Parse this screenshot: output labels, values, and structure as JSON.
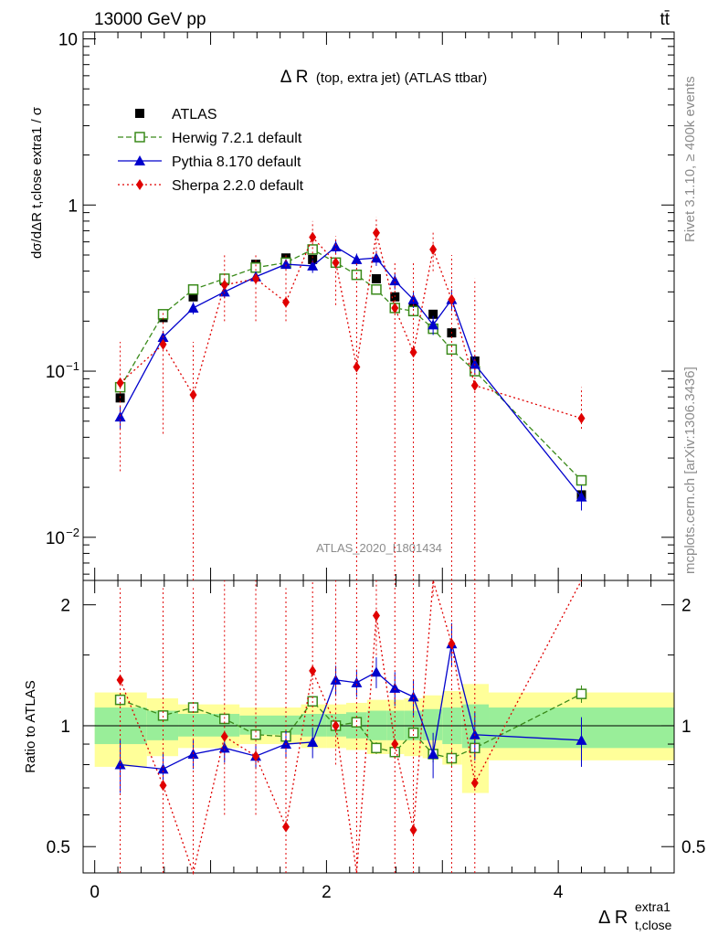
{
  "header": {
    "energy": "13000 GeV pp",
    "process": "tt̄",
    "title_main": "Δ R",
    "title_detail": "(top, extra jet) (ATLAS ttbar)",
    "side_rivet": "Rivet 3.1.10, ≥ 400k events",
    "side_mcplots": "mcplots.cern.ch [arXiv:1306.3436]",
    "analysis_id": "ATLAS_2020_I1801434"
  },
  "axes": {
    "ylabel_top": "dσ/dΔR t,close extra1 / σ",
    "ylabel_ratio": "Ratio to ATLAS",
    "xlabel": "Δ R",
    "xlabel_sup": "extra1",
    "xlabel_sub": "t,close",
    "xlim": [
      -0.1,
      5.0
    ],
    "ylim_top": [
      0.0055,
      11
    ],
    "ylim_ratio": [
      0.43,
      2.3
    ],
    "yscale": "log",
    "top_ticks": [
      "10",
      "1",
      "10",
      "10"
    ],
    "top_tick_exps": [
      "",
      "",
      "−1",
      "−2"
    ],
    "ratio_ticks": [
      "2",
      "1",
      "0.5"
    ],
    "x_ticks": [
      "0",
      "2",
      "4"
    ]
  },
  "legend": [
    {
      "label": "ATLAS",
      "color": "#000000"
    },
    {
      "label": "Herwig 7.2.1 default",
      "color": "#3a8a1a"
    },
    {
      "label": "Pythia 8.170 default",
      "color": "#0000cc"
    },
    {
      "label": "Sherpa 2.2.0 default",
      "color": "#e00000"
    }
  ],
  "chart_data": {
    "type": "scatter",
    "x": [
      0.22,
      0.59,
      0.85,
      1.12,
      1.39,
      1.65,
      1.88,
      2.08,
      2.26,
      2.43,
      2.59,
      2.75,
      2.92,
      3.08,
      3.28,
      4.2
    ],
    "series": [
      {
        "name": "ATLAS",
        "marker": "square",
        "color": "#000000",
        "values": [
          0.069,
          0.21,
          0.28,
          0.35,
          0.44,
          0.48,
          0.47,
          0.45,
          0.38,
          0.36,
          0.28,
          0.24,
          0.22,
          0.17,
          0.115,
          0.018
        ]
      },
      {
        "name": "Herwig 7.2.1 default",
        "marker": "open-square",
        "color": "#3a8a1a",
        "linestyle": "dashed",
        "values": [
          0.08,
          0.22,
          0.31,
          0.36,
          0.42,
          0.45,
          0.54,
          0.45,
          0.38,
          0.31,
          0.24,
          0.23,
          0.18,
          0.135,
          0.1,
          0.022
        ],
        "errors": [
          0.003,
          0.005,
          0.006,
          0.008,
          0.009,
          0.01,
          0.012,
          0.012,
          0.01,
          0.01,
          0.009,
          0.009,
          0.008,
          0.007,
          0.006,
          0.0015
        ],
        "ratio": [
          1.16,
          1.06,
          1.11,
          1.04,
          0.95,
          0.94,
          1.15,
          1.0,
          1.02,
          0.88,
          0.86,
          0.96,
          0.85,
          0.83,
          0.88,
          1.2
        ],
        "ratio_err": [
          0.04,
          0.03,
          0.03,
          0.03,
          0.03,
          0.03,
          0.03,
          0.03,
          0.03,
          0.03,
          0.03,
          0.04,
          0.04,
          0.04,
          0.05,
          0.06
        ]
      },
      {
        "name": "Pythia 8.170 default",
        "marker": "triangle",
        "color": "#0000cc",
        "linestyle": "solid",
        "values": [
          0.053,
          0.16,
          0.24,
          0.3,
          0.37,
          0.44,
          0.43,
          0.56,
          0.47,
          0.48,
          0.35,
          0.27,
          0.19,
          0.27,
          0.11,
          0.0175
        ],
        "errors": [
          0.008,
          0.015,
          0.02,
          0.025,
          0.025,
          0.03,
          0.04,
          0.05,
          0.04,
          0.05,
          0.04,
          0.03,
          0.025,
          0.04,
          0.015,
          0.003
        ],
        "ratio": [
          0.8,
          0.78,
          0.85,
          0.88,
          0.84,
          0.9,
          0.91,
          1.3,
          1.28,
          1.36,
          1.24,
          1.18,
          0.85,
          1.6,
          0.95,
          0.92
        ],
        "ratio_err": [
          0.12,
          0.08,
          0.07,
          0.07,
          0.06,
          0.07,
          0.08,
          0.11,
          0.1,
          0.12,
          0.12,
          0.12,
          0.11,
          0.2,
          0.13,
          0.13
        ]
      },
      {
        "name": "Sherpa 2.2.0 default",
        "marker": "diamond",
        "color": "#e00000",
        "linestyle": "dotted",
        "values": [
          0.085,
          0.145,
          0.072,
          0.33,
          0.36,
          0.26,
          0.64,
          0.45,
          0.106,
          0.68,
          0.24,
          0.13,
          0.54,
          0.27,
          0.082,
          0.052
        ],
        "ratio": [
          1.3,
          0.71,
          0.35,
          0.94,
          0.84,
          0.56,
          1.37,
          1.0,
          0.31,
          1.88,
          0.9,
          0.55,
          2.4,
          1.6,
          0.72,
          2.9
        ],
        "err_lo_abs": [
          0.025,
          0.042,
          0.002,
          0.2,
          0.2,
          0.2,
          0.45,
          0.25,
          0.002,
          0.48,
          0.002,
          0.002,
          0.4,
          0.002,
          0.002,
          0.045
        ],
        "err_hi_abs": [
          0.15,
          0.23,
          0.15,
          0.5,
          0.5,
          0.5,
          0.8,
          0.65,
          0.45,
          0.85,
          0.45,
          0.45,
          0.7,
          0.5,
          0.36,
          0.08
        ],
        "ratio_lo_abs": [
          0.43,
          0.43,
          0.43,
          0.6,
          0.6,
          0.43,
          1.0,
          0.8,
          0.43,
          1.5,
          0.43,
          0.43,
          2.1,
          0.43,
          0.43,
          2.3
        ],
        "ratio_hi_abs": [
          2.2,
          2.2,
          2.2,
          2.3,
          2.3,
          2.2,
          2.3,
          2.3,
          2.3,
          2.3,
          2.3,
          2.3,
          2.3,
          2.3,
          2.3,
          2.3
        ]
      }
    ],
    "bands": {
      "edges": [
        0.0,
        0.45,
        0.72,
        1.25,
        1.52,
        1.78,
        2.0,
        2.17,
        2.35,
        2.52,
        2.67,
        2.83,
        3.0,
        3.17,
        3.4,
        5.0
      ],
      "green_lo": [
        0.9,
        0.92,
        0.94,
        0.95,
        0.95,
        0.94,
        0.94,
        0.93,
        0.92,
        0.92,
        0.92,
        0.92,
        0.9,
        0.88,
        0.88
      ],
      "green_hi": [
        1.11,
        1.09,
        1.07,
        1.06,
        1.06,
        1.07,
        1.07,
        1.08,
        1.09,
        1.09,
        1.09,
        1.1,
        1.11,
        1.13,
        1.11
      ],
      "yellow_lo": [
        0.79,
        0.84,
        0.88,
        0.9,
        0.9,
        0.88,
        0.88,
        0.87,
        0.85,
        0.85,
        0.84,
        0.83,
        0.8,
        0.68,
        0.82
      ],
      "yellow_hi": [
        1.21,
        1.17,
        1.13,
        1.11,
        1.11,
        1.13,
        1.13,
        1.14,
        1.16,
        1.16,
        1.17,
        1.19,
        1.22,
        1.27,
        1.21
      ]
    }
  }
}
